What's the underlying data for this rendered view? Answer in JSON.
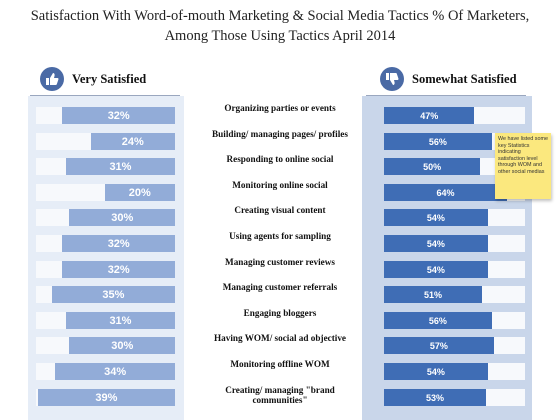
{
  "title": "Satisfaction With Word-of-mouth Marketing & Social Media Tactics % Of Marketers, Among Those Using Tactics April 2014",
  "left_header": "Very Satisfied",
  "right_header": "Somewhat Satisfied",
  "left_icon": "thumbs-up-icon",
  "right_icon": "thumbs-down-icon",
  "colors": {
    "left_bar": "#92acd8",
    "right_bar": "#3f6db5",
    "left_panel": "#e6edf7",
    "right_panel": "#c9d6ea",
    "note": "#fbe87e"
  },
  "note_text": "We have listed some key Statistics indicating satisfaction level through WOM and other social medias",
  "chart_data": {
    "type": "bar",
    "orientation": "horizontal",
    "categories": [
      "Organizing parties or events",
      "Building/ managing pages/ profiles",
      "Responding to online social",
      "Monitoring online social",
      "Creating visual content",
      "Using agents for sampling",
      "Managing customer reviews",
      "Managing customer referrals",
      "Engaging bloggers",
      "Having WOM/ social ad objective",
      "Monitoring offline WOM",
      "Creating/ managing \"brand communities\""
    ],
    "series": [
      {
        "name": "Very Satisfied",
        "values": [
          32,
          24,
          31,
          20,
          30,
          32,
          32,
          35,
          31,
          30,
          34,
          39
        ]
      },
      {
        "name": "Somewhat Satisfied",
        "values": [
          47,
          56,
          50,
          64,
          54,
          54,
          54,
          51,
          56,
          57,
          54,
          53
        ]
      }
    ],
    "value_suffix": "%",
    "left_direction": "right-to-left",
    "right_direction": "left-to-right",
    "grid": false
  }
}
